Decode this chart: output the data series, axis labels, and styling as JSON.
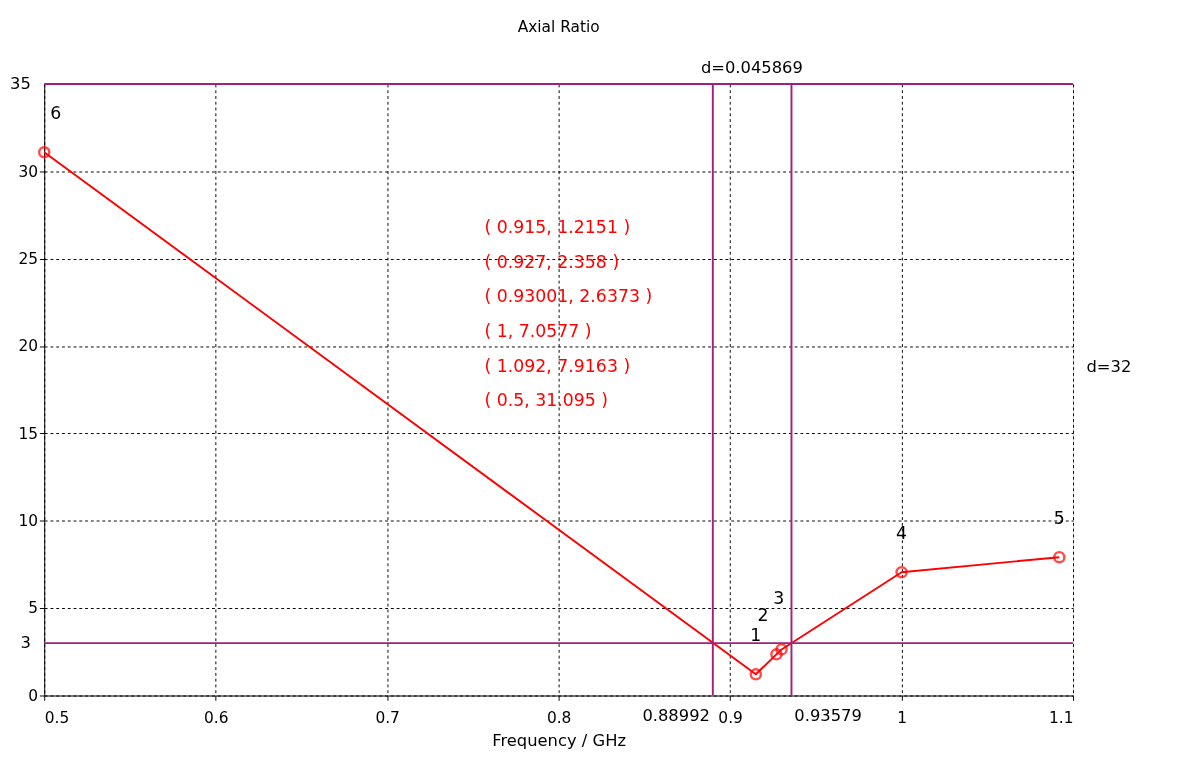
{
  "chart_data": {
    "type": "line",
    "title": "Axial Ratio",
    "xlabel": "Frequency / GHz",
    "x": [
      0.5,
      0.915,
      0.927,
      0.93001,
      1,
      1.092
    ],
    "series": [
      {
        "color": "#ff0000",
        "values": [
          31.095,
          1.2151,
          2.358,
          2.6373,
          7.0577,
          7.9163
        ]
      }
    ],
    "xlim": [
      0.5,
      1.1
    ],
    "xticks": [
      0.5,
      0.6,
      0.7,
      0.8,
      0.9,
      1,
      1.1
    ],
    "ylim": [
      0,
      35
    ],
    "yticks": [
      0,
      5,
      10,
      15,
      20,
      25,
      30
    ],
    "grid": true,
    "marker": "circle",
    "line_style": "solid",
    "ref_lines": [
      {
        "axis": "y",
        "value": 35,
        "label": "35",
        "color": "#a0207f"
      },
      {
        "axis": "y",
        "value": 3,
        "label": "3",
        "color": "#a0207f"
      },
      {
        "axis": "x",
        "value": 0.88992,
        "label": "0.88992",
        "color": "#a0207f"
      },
      {
        "axis": "x",
        "value": 0.93579,
        "label": "0.93579",
        "color": "#a0207f"
      }
    ],
    "annotations": [
      {
        "text": "1",
        "x": 0.915,
        "y": 1.2151
      },
      {
        "text": "2",
        "x": 0.927,
        "y": 2.358
      },
      {
        "text": "3",
        "x": 0.93001,
        "y": 2.6373
      },
      {
        "text": "4",
        "x": 1,
        "y": 7.0577
      },
      {
        "text": "5",
        "x": 1.092,
        "y": 7.9163
      },
      {
        "text": "6",
        "x": 0.5,
        "y": 31.095
      },
      "( 0.915, 1.2151 )",
      "( 0.927, 2.358 )",
      "( 0.93001, 2.6373 )",
      "( 1, 7.0577 )",
      "( 1.092, 7.9163 )",
      "( 0.5, 31.095 )",
      "d=0.045869",
      "d=32"
    ]
  }
}
